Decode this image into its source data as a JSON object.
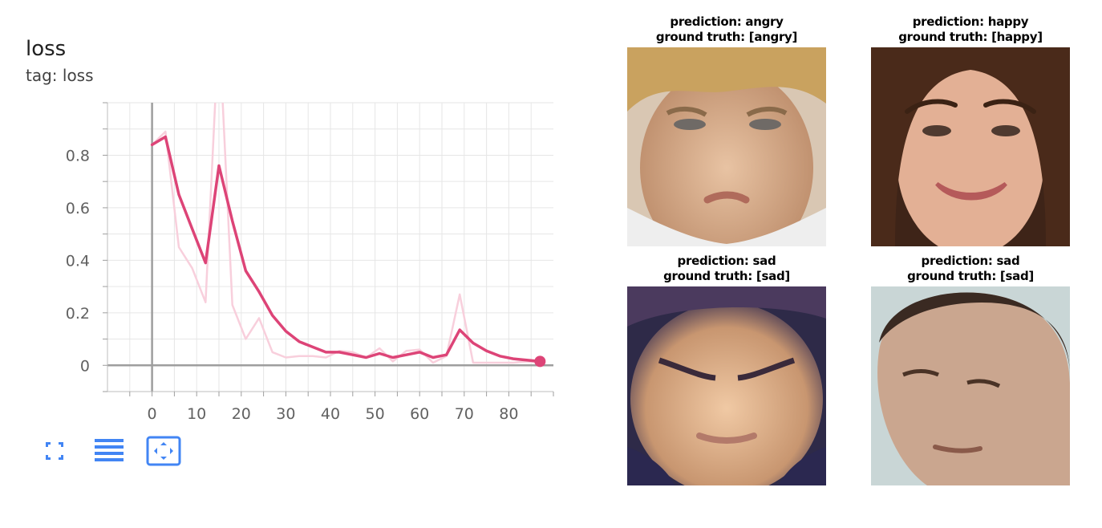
{
  "card": {
    "title": "loss",
    "tag": "tag: loss"
  },
  "chart_data": {
    "type": "line",
    "title": "loss",
    "subtitle": "tag: loss",
    "xlabel": "",
    "ylabel": "",
    "xlim": [
      -10,
      90
    ],
    "ylim": [
      -0.1,
      1.0
    ],
    "xticks": [
      0,
      10,
      20,
      30,
      40,
      50,
      60,
      70,
      80
    ],
    "xtick_labels": [
      "0",
      "10",
      "20",
      "30",
      "40",
      "50",
      "60",
      "70",
      "80"
    ],
    "yticks": [
      0,
      0.2,
      0.4,
      0.6,
      0.8
    ],
    "ytick_labels": [
      "0",
      "0.2",
      "0.4",
      "0.6",
      "0.8"
    ],
    "grid": true,
    "series": [
      {
        "role": "raw",
        "color": "#f8cfdc",
        "x": [
          0,
          3,
          6,
          9,
          12,
          15,
          18,
          21,
          24,
          27,
          30,
          33,
          36,
          39,
          42,
          45,
          48,
          51,
          54,
          57,
          60,
          63,
          66,
          69,
          72,
          75,
          78,
          81,
          84,
          87
        ],
        "y": [
          0.84,
          0.89,
          0.45,
          0.37,
          0.24,
          1.3,
          0.23,
          0.1,
          0.18,
          0.05,
          0.03,
          0.035,
          0.035,
          0.03,
          0.055,
          0.05,
          0.03,
          0.065,
          0.015,
          0.055,
          0.06,
          0.01,
          0.035,
          0.27,
          0.01,
          0.01,
          0.01,
          0.01,
          0.015,
          0.01
        ]
      },
      {
        "role": "smoothed",
        "color": "#dd4477",
        "x": [
          0,
          3,
          6,
          9,
          12,
          15,
          18,
          21,
          24,
          27,
          30,
          33,
          36,
          39,
          42,
          45,
          48,
          51,
          54,
          57,
          60,
          63,
          66,
          69,
          72,
          75,
          78,
          81,
          84,
          87
        ],
        "y": [
          0.84,
          0.87,
          0.65,
          0.52,
          0.39,
          0.76,
          0.55,
          0.36,
          0.28,
          0.19,
          0.13,
          0.09,
          0.07,
          0.05,
          0.05,
          0.04,
          0.03,
          0.045,
          0.03,
          0.04,
          0.05,
          0.03,
          0.04,
          0.135,
          0.085,
          0.055,
          0.035,
          0.025,
          0.02,
          0.015
        ]
      }
    ]
  },
  "toolbar": [
    {
      "name": "fullscreen-icon"
    },
    {
      "name": "toggle-log-scale-icon"
    },
    {
      "name": "fit-domain-icon"
    }
  ],
  "colors": {
    "accent": "#4285f4",
    "line": "#dd4477",
    "raw": "#f8cfdc"
  },
  "predictions": [
    {
      "prediction": "prediction: angry",
      "truth": "ground truth: [angry]"
    },
    {
      "prediction": "prediction: happy",
      "truth": "ground truth: [happy]"
    },
    {
      "prediction": "prediction: sad",
      "truth": "ground truth: [sad]"
    },
    {
      "prediction": "prediction: sad",
      "truth": "ground truth: [sad]"
    }
  ]
}
